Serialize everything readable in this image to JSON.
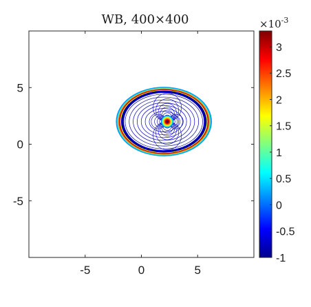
{
  "chart_data": {
    "type": "contour",
    "title": "WB, 400×400",
    "xlabel": "",
    "ylabel": "",
    "xlim": [
      -10,
      10
    ],
    "ylim": [
      -10,
      10
    ],
    "xticks": [
      -5,
      0,
      5
    ],
    "xtick_labels": [
      "-5",
      "0",
      "5"
    ],
    "yticks": [
      5,
      0,
      -5
    ],
    "ytick_labels": [
      "5",
      "0",
      "-5"
    ],
    "grid": false,
    "colormap": "jet",
    "colorbar": {
      "min": -1,
      "max": 3.3,
      "ticks": [
        3,
        2.5,
        2,
        1.5,
        1,
        0.5,
        0,
        -0.5,
        -1
      ],
      "tick_labels": [
        "3",
        "2.5",
        "2",
        "1.5",
        "1",
        "0.5",
        "0",
        "-0.5",
        "-1"
      ],
      "exponent_label": "×10^-3"
    },
    "field": {
      "ellipse_center": [
        2,
        2
      ],
      "ellipse_semi_axes": [
        4.2,
        3
      ],
      "source_point": [
        2.3,
        2
      ],
      "ring_levels": [
        0.2,
        1.0,
        2.3,
        3.3
      ]
    }
  }
}
